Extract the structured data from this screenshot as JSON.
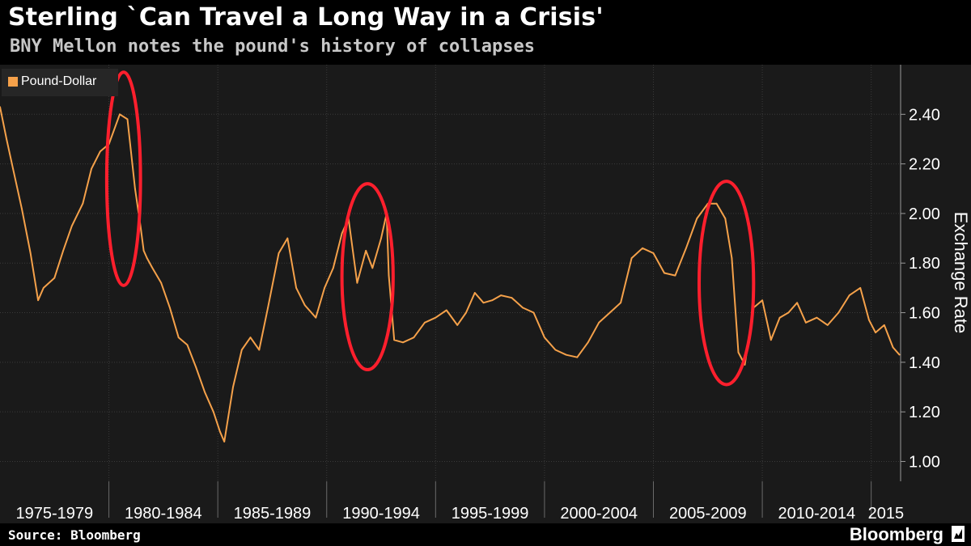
{
  "title": "Sterling `Can Travel a Long Way in a Crisis'",
  "subtitle": "BNY Mellon notes the pound's history of collapses",
  "source": "Source: Bloomberg",
  "brand": "Bloomberg",
  "colors": {
    "series": "#f5a14a",
    "highlight": "#ff1f2d",
    "background": "#1a1a1a",
    "grid": "#3a3a3a"
  },
  "chart_data": {
    "type": "line",
    "title": "Sterling `Can Travel a Long Way in a Crisis'",
    "subtitle": "BNY Mellon notes the pound's history of collapses",
    "ylabel": "Exchange Rate",
    "ylim": [
      0.92,
      2.6
    ],
    "yticks": [
      1.0,
      1.2,
      1.4,
      1.6,
      1.8,
      2.0,
      2.2,
      2.4
    ],
    "ytick_labels": [
      "1.00",
      "1.20",
      "1.40",
      "1.60",
      "1.80",
      "2.00",
      "2.20",
      "2.40"
    ],
    "xlim": [
      1975.0,
      2016.35
    ],
    "x_categories": [
      "1975-1979",
      "1980-1984",
      "1985-1989",
      "1990-1994",
      "1995-1999",
      "2000-2004",
      "2005-2009",
      "2010-2014",
      "2015"
    ],
    "grid": true,
    "legend_position": "top-left",
    "series": [
      {
        "name": "Pound-Dollar",
        "x": [
          1975.0,
          1975.3,
          1975.6,
          1976.0,
          1976.4,
          1976.75,
          1977.0,
          1977.5,
          1977.9,
          1978.3,
          1978.8,
          1979.2,
          1979.6,
          1980.0,
          1980.5,
          1980.85,
          1981.2,
          1981.45,
          1981.6,
          1981.75,
          1982.0,
          1982.4,
          1982.8,
          1983.2,
          1983.6,
          1984.0,
          1984.4,
          1984.8,
          1985.1,
          1985.3,
          1985.7,
          1986.1,
          1986.5,
          1986.9,
          1987.3,
          1987.8,
          1988.2,
          1988.6,
          1989.0,
          1989.5,
          1989.9,
          1990.3,
          1990.7,
          1991.0,
          1991.4,
          1991.8,
          1992.1,
          1992.5,
          1992.75,
          1992.85,
          1993.1,
          1993.5,
          1994.0,
          1994.5,
          1995.0,
          1995.5,
          1996.0,
          1996.4,
          1996.8,
          1997.2,
          1997.6,
          1998.0,
          1998.5,
          1999.0,
          1999.5,
          2000.0,
          2000.5,
          2001.0,
          2001.5,
          2002.0,
          2002.5,
          2003.0,
          2003.5,
          2004.0,
          2004.5,
          2005.0,
          2005.5,
          2006.0,
          2006.5,
          2007.0,
          2007.5,
          2007.9,
          2008.3,
          2008.6,
          2008.9,
          2009.2,
          2009.6,
          2010.0,
          2010.4,
          2010.8,
          2011.2,
          2011.6,
          2012.0,
          2012.5,
          2013.0,
          2013.5,
          2014.0,
          2014.5,
          2014.9,
          2015.2,
          2015.6,
          2016.0,
          2016.3
        ],
        "y": [
          2.43,
          2.3,
          2.18,
          2.02,
          1.84,
          1.65,
          1.7,
          1.74,
          1.85,
          1.95,
          2.04,
          2.18,
          2.25,
          2.28,
          2.4,
          2.38,
          2.1,
          1.95,
          1.85,
          1.82,
          1.78,
          1.72,
          1.62,
          1.5,
          1.47,
          1.38,
          1.28,
          1.2,
          1.12,
          1.08,
          1.3,
          1.45,
          1.5,
          1.45,
          1.62,
          1.84,
          1.9,
          1.7,
          1.63,
          1.58,
          1.7,
          1.78,
          1.92,
          1.98,
          1.72,
          1.85,
          1.78,
          1.9,
          2.0,
          1.75,
          1.49,
          1.48,
          1.5,
          1.56,
          1.58,
          1.61,
          1.55,
          1.6,
          1.68,
          1.64,
          1.65,
          1.67,
          1.66,
          1.62,
          1.6,
          1.5,
          1.45,
          1.43,
          1.42,
          1.48,
          1.56,
          1.6,
          1.64,
          1.82,
          1.86,
          1.84,
          1.76,
          1.75,
          1.86,
          1.98,
          2.04,
          2.04,
          1.98,
          1.82,
          1.44,
          1.39,
          1.62,
          1.65,
          1.49,
          1.58,
          1.6,
          1.64,
          1.56,
          1.58,
          1.55,
          1.6,
          1.67,
          1.7,
          1.57,
          1.52,
          1.55,
          1.46,
          1.43
        ]
      }
    ],
    "annotations": [
      {
        "type": "ellipse",
        "x_range": [
          1979.9,
          1981.45
        ],
        "y_range": [
          1.71,
          2.57
        ]
      },
      {
        "type": "ellipse",
        "x_range": [
          1990.7,
          1993.05
        ],
        "y_range": [
          1.37,
          2.12
        ]
      },
      {
        "type": "ellipse",
        "x_range": [
          2007.1,
          2009.6
        ],
        "y_range": [
          1.31,
          2.13
        ]
      }
    ]
  }
}
